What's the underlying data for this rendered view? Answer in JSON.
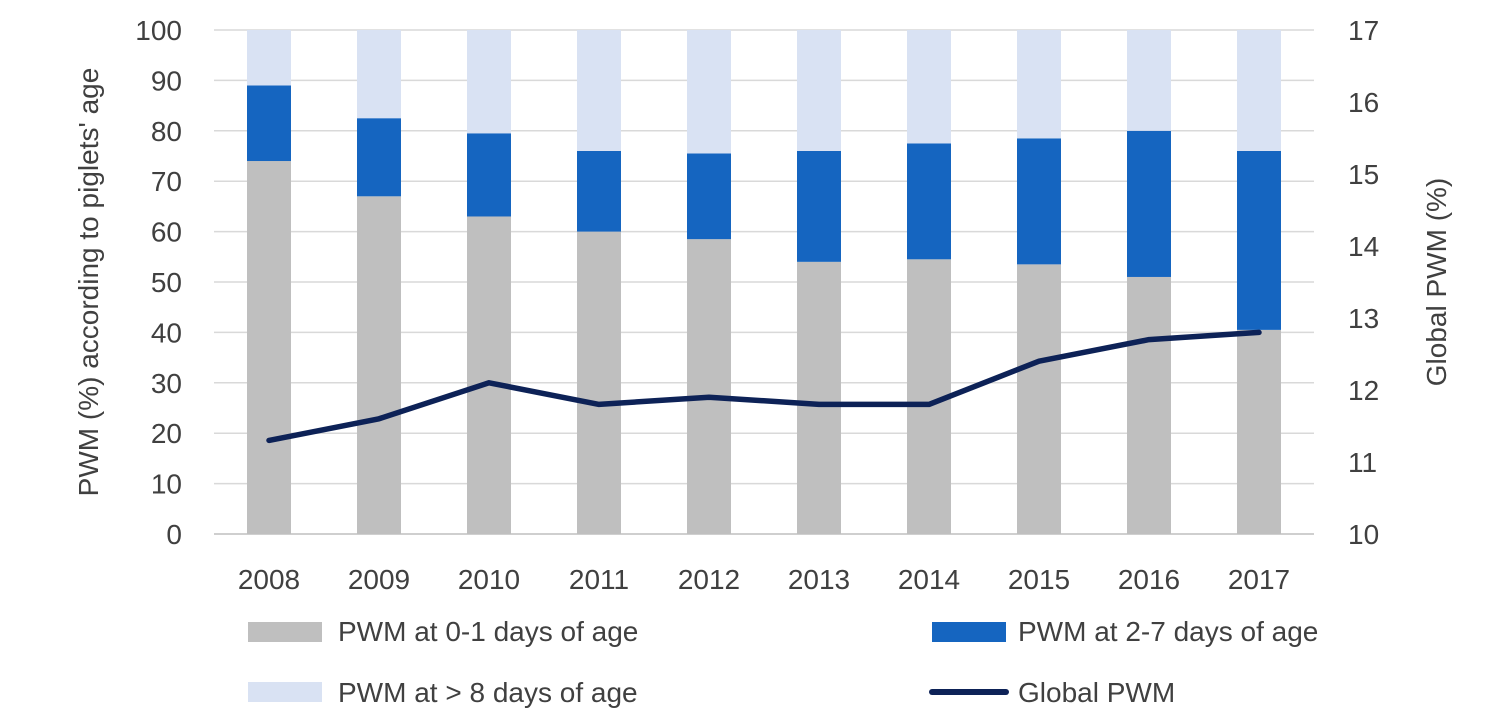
{
  "chart_data": {
    "type": "bar",
    "stacked": true,
    "categories": [
      "2008",
      "2009",
      "2010",
      "2011",
      "2012",
      "2013",
      "2014",
      "2015",
      "2016",
      "2017"
    ],
    "series": [
      {
        "name": "PWM at 0-1 days of age",
        "color": "#bfbfbf",
        "values": [
          74,
          67,
          63,
          60,
          58.5,
          54,
          54.5,
          53.5,
          51,
          40.5
        ]
      },
      {
        "name": "PWM at 2-7 days of age",
        "color": "#1565c0",
        "values": [
          15,
          15.5,
          16.5,
          16,
          17,
          22,
          23,
          25,
          29,
          35.5
        ]
      },
      {
        "name": "PWM at > 8 days of age",
        "color": "#d9e2f3",
        "values": [
          11,
          17.5,
          20.5,
          24,
          24.5,
          24,
          22.5,
          21.5,
          20,
          24
        ]
      }
    ],
    "line_series": {
      "name": "Global PWM",
      "color": "#0d2257",
      "axis": "right",
      "values": [
        11.3,
        11.6,
        12.1,
        11.8,
        11.9,
        11.8,
        11.8,
        12.4,
        12.7,
        12.8
      ]
    },
    "ylabel": "PWM (%) according to piglets' age",
    "ylabel_right": "Global PWM (%)",
    "ylim": [
      0,
      100
    ],
    "yticks": [
      "0",
      "10",
      "20",
      "30",
      "40",
      "50",
      "60",
      "70",
      "80",
      "90",
      "100"
    ],
    "ylim_right": [
      10,
      17
    ],
    "yticks_right": [
      "10",
      "11",
      "12",
      "13",
      "14",
      "15",
      "16",
      "17"
    ],
    "grid": true,
    "legend_position": "bottom"
  }
}
